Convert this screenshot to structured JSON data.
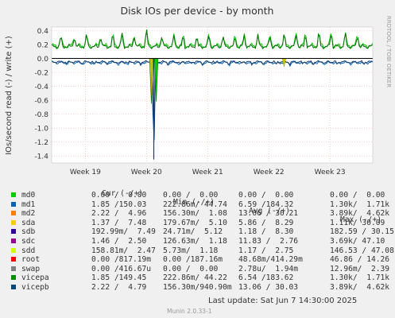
{
  "chart_data": {
    "type": "line",
    "title": "Disk IOs per device - by month",
    "ylabel": "IOs/second read (-) / write (+)",
    "xlabel": "",
    "side_label": "RRDTOOL / TOBI OETIKER",
    "ylim": [
      -1.5,
      0.45
    ],
    "y_ticks": [
      0.4,
      0.2,
      0.0,
      -0.2,
      -0.4,
      -0.6,
      -0.8,
      -1.0,
      -1.2,
      -1.4
    ],
    "y_tick_labels": [
      "0.4",
      "0.2",
      "0.0",
      "-0.2",
      "-0.4",
      "-0.6",
      "-0.8",
      "-1.0",
      "-1.2",
      "-1.4"
    ],
    "x_range": [
      18.45,
      23.7
    ],
    "x_ticks": [
      19,
      20,
      21,
      22,
      23
    ],
    "x_tick_labels": [
      "Week 19",
      "Week 20",
      "Week 21",
      "Week 22",
      "Week 23"
    ],
    "grid": true,
    "legend_position": "bottom",
    "series_colors": {
      "write": "#00cc00",
      "read": "#0066b3",
      "dark_write": "#0a6e0a",
      "dark_read": "#1a3a6e",
      "yellow": "#ccc000"
    },
    "series": [
      {
        "name": "vicepa",
        "kind": "write",
        "base": 0.18,
        "amplitude": 0.05
      },
      {
        "name": "vicepb",
        "kind": "read",
        "base": -0.06,
        "amplitude": 0.03
      }
    ],
    "spikes_up": [
      {
        "x": 18.6,
        "y": 0.32
      },
      {
        "x": 18.82,
        "y": 0.33
      },
      {
        "x": 19.02,
        "y": 0.34
      },
      {
        "x": 19.25,
        "y": 0.33
      },
      {
        "x": 19.45,
        "y": 0.34
      },
      {
        "x": 19.6,
        "y": 0.35
      },
      {
        "x": 19.8,
        "y": 0.34
      },
      {
        "x": 20.0,
        "y": 0.42
      },
      {
        "x": 20.25,
        "y": 0.33
      },
      {
        "x": 20.45,
        "y": 0.32
      },
      {
        "x": 20.6,
        "y": 0.33
      },
      {
        "x": 20.82,
        "y": 0.32
      },
      {
        "x": 21.02,
        "y": 0.34
      },
      {
        "x": 21.25,
        "y": 0.33
      },
      {
        "x": 21.45,
        "y": 0.32
      },
      {
        "x": 21.6,
        "y": 0.33
      },
      {
        "x": 21.82,
        "y": 0.34
      },
      {
        "x": 22.02,
        "y": 0.33
      },
      {
        "x": 22.25,
        "y": 0.35
      },
      {
        "x": 22.45,
        "y": 0.36
      },
      {
        "x": 22.6,
        "y": 0.37
      },
      {
        "x": 22.82,
        "y": 0.38
      },
      {
        "x": 23.02,
        "y": 0.39
      },
      {
        "x": 23.25,
        "y": 0.37
      },
      {
        "x": 23.45,
        "y": 0.36
      }
    ],
    "spikes_down": [
      {
        "x": 18.7,
        "y": -0.08
      },
      {
        "x": 18.95,
        "y": -0.08
      },
      {
        "x": 19.15,
        "y": -0.09
      },
      {
        "x": 19.35,
        "y": -0.08
      },
      {
        "x": 19.55,
        "y": -0.09
      },
      {
        "x": 19.7,
        "y": -0.08
      },
      {
        "x": 19.9,
        "y": -0.09
      },
      {
        "x": 20.12,
        "y": -1.45
      },
      {
        "x": 20.35,
        "y": -0.08
      },
      {
        "x": 20.55,
        "y": -0.09
      },
      {
        "x": 20.72,
        "y": -0.08
      },
      {
        "x": 20.92,
        "y": -0.09
      },
      {
        "x": 21.12,
        "y": -0.08
      },
      {
        "x": 21.35,
        "y": -0.09
      },
      {
        "x": 21.55,
        "y": -0.08
      },
      {
        "x": 21.72,
        "y": -0.09
      },
      {
        "x": 21.92,
        "y": -0.08
      },
      {
        "x": 22.12,
        "y": -0.09
      },
      {
        "x": 22.35,
        "y": -0.09
      },
      {
        "x": 22.55,
        "y": -0.08
      },
      {
        "x": 22.72,
        "y": -0.09
      },
      {
        "x": 22.92,
        "y": -0.08
      },
      {
        "x": 23.12,
        "y": -0.09
      },
      {
        "x": 23.35,
        "y": -0.08
      },
      {
        "x": 23.55,
        "y": -0.09
      }
    ],
    "big_read_spike": {
      "x": 20.12,
      "y": -1.45,
      "secondary": [
        {
          "x": 20.08,
          "y": -0.65,
          "color": "#ccc000"
        },
        {
          "x": 20.16,
          "y": -0.62,
          "color": "#00cc00"
        }
      ]
    },
    "yellow_dip": {
      "x": 22.25,
      "y": -0.12
    }
  },
  "legend": {
    "headers": {
      "cur": "Cur (-/+)",
      "min": "Min (-/+)",
      "avg": "Avg (-/+)",
      "max": "Max (-/+)"
    },
    "rows": [
      {
        "name": "md0",
        "color": "#00cc00",
        "cur": "0.00 /  0.00",
        "min": "0.00 /  0.00",
        "avg": "0.00 /  0.00",
        "max": "0.00 /  0.00"
      },
      {
        "name": "md1",
        "color": "#0066b3",
        "cur": "1.85 /150.03",
        "min": "222.86m/ 44.74",
        "avg": "6.59 /184.32",
        "max": "1.30k/  1.71k"
      },
      {
        "name": "md2",
        "color": "#ff8000",
        "cur": "2.22 /  4.96",
        "min": "156.30m/  1.08",
        "avg": "13.06 / 30.21",
        "max": "3.89k/  4.62k"
      },
      {
        "name": "sda",
        "color": "#ffcc00",
        "cur": "1.37 /  7.48",
        "min": "179.67m/  5.10",
        "avg": "5.86 /  8.29",
        "max": "1.11k/ 30.09"
      },
      {
        "name": "sdb",
        "color": "#330099",
        "cur": "192.99m/  7.49",
        "min": "24.71m/  5.12",
        "avg": "1.18 /  8.30",
        "max": "182.59 / 30.15"
      },
      {
        "name": "sdc",
        "color": "#990099",
        "cur": "1.46 /  2.50",
        "min": "126.63m/  1.18",
        "avg": "11.83 /  2.76",
        "max": "3.69k/ 47.10"
      },
      {
        "name": "sdd",
        "color": "#ccff00",
        "cur": "158.81m/  2.47",
        "min": "5.73m/  1.18",
        "avg": "1.17 /  2.75",
        "max": "146.53 / 47.08"
      },
      {
        "name": "root",
        "color": "#ff0000",
        "cur": "0.00 /817.19m",
        "min": "0.00 /187.16m",
        "avg": "48.68m/414.29m",
        "max": "46.86 / 14.26"
      },
      {
        "name": "swap",
        "color": "#808080",
        "cur": "0.00 /416.67u",
        "min": "0.00 /  0.00",
        "avg": "2.78u/  1.94m",
        "max": "12.96m/  2.39"
      },
      {
        "name": "vicepa",
        "color": "#008f00",
        "cur": "1.85 /149.45",
        "min": "222.86m/ 44.22",
        "avg": "6.54 /183.62",
        "max": "1.30k/  1.71k"
      },
      {
        "name": "vicepb",
        "color": "#00487d",
        "cur": "2.22 /  4.79",
        "min": "156.30m/940.90m",
        "avg": "13.06 / 30.03",
        "max": "3.89k/  4.62k"
      }
    ]
  },
  "footer": {
    "last_update": "Last update:  Sat Jun  7 14:30:00 2025",
    "munin": "Munin 2.0.33-1"
  }
}
